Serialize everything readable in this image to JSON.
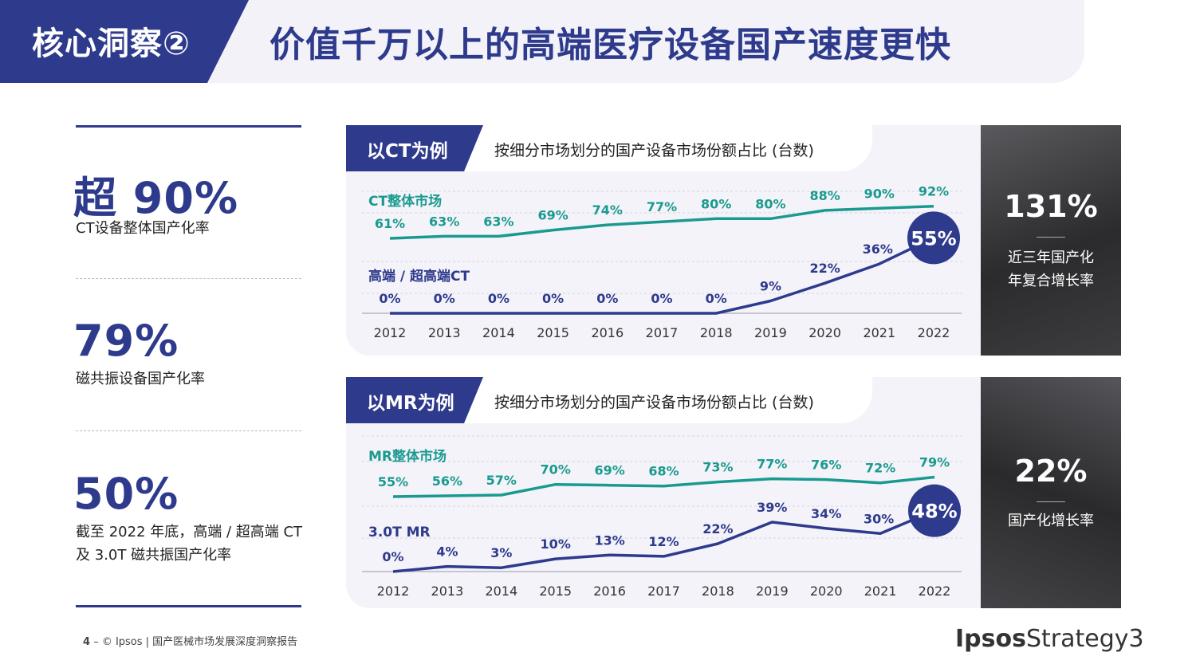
{
  "header": {
    "tag": "核心洞察②",
    "title": "价值千万以上的高端医疗设备国产速度更快"
  },
  "stats": [
    {
      "big": "超 90%",
      "lines": [
        "CT设备整体国产化率"
      ]
    },
    {
      "big": "79%",
      "lines": [
        "磁共振设备国产化率"
      ]
    },
    {
      "big": "50%",
      "lines": [
        "截至 2022 年底，高端 / 超高端 CT",
        "及 3.0T 磁共振国产化率"
      ]
    }
  ],
  "panels": [
    {
      "tag": "以CT为例",
      "subtitle": "按细分市场划分的国产设备市场份额占比 (台数)"
    },
    {
      "tag": "以MR为例",
      "subtitle": "按细分市场划分的国产设备市场份额占比 (台数)"
    }
  ],
  "sides": [
    {
      "value": "131%",
      "lines": [
        "近三年国产化",
        "年复合增长率"
      ]
    },
    {
      "value": "22%",
      "lines": [
        "国产化增长率"
      ]
    }
  ],
  "colors": {
    "navy": "#2e3a8c",
    "teal": "#1a9a8e"
  },
  "chart_data": [
    {
      "type": "line",
      "x": [
        "2012",
        "2013",
        "2014",
        "2015",
        "2016",
        "2017",
        "2018",
        "2019",
        "2020",
        "2021",
        "2022"
      ],
      "series": [
        {
          "name": "CT整体市场",
          "color": "#1a9a8e",
          "values": [
            61,
            63,
            63,
            69,
            74,
            77,
            80,
            80,
            88,
            90,
            92
          ],
          "labels": [
            "61%",
            "63%",
            "63%",
            "69%",
            "74%",
            "77%",
            "80%",
            "80%",
            "88%",
            "90%",
            "92%"
          ]
        },
        {
          "name": "高端 / 超高端CT",
          "color": "#2e3a8c",
          "values": [
            0,
            0,
            0,
            0,
            0,
            0,
            0,
            9,
            22,
            36,
            55
          ],
          "labels": [
            "0%",
            "0%",
            "0%",
            "0%",
            "0%",
            "0%",
            "0%",
            "9%",
            "22%",
            "36%",
            "55%"
          ]
        }
      ],
      "grid": true
    },
    {
      "type": "line",
      "x": [
        "2012",
        "2013",
        "2014",
        "2015",
        "2016",
        "2017",
        "2018",
        "2019",
        "2020",
        "2021",
        "2022"
      ],
      "series": [
        {
          "name": "MR整体市场",
          "color": "#1a9a8e",
          "values": [
            55,
            56,
            57,
            70,
            69,
            68,
            73,
            77,
            76,
            72,
            79
          ],
          "labels": [
            "55%",
            "56%",
            "57%",
            "70%",
            "69%",
            "68%",
            "73%",
            "77%",
            "76%",
            "72%",
            "79%"
          ]
        },
        {
          "name": "3.0T MR",
          "color": "#2e3a8c",
          "values": [
            0,
            4,
            3,
            10,
            13,
            12,
            22,
            39,
            34,
            30,
            48
          ],
          "labels": [
            "0%",
            "4%",
            "3%",
            "10%",
            "13%",
            "12%",
            "22%",
            "39%",
            "34%",
            "30%",
            "48%"
          ]
        }
      ],
      "grid": true
    }
  ],
  "footer": {
    "page": "4",
    "text": "–  © Ipsos | 国产医械市场发展深度洞察报告",
    "logo_bold": "Ipsos",
    "logo_rest": "Strategy3"
  }
}
